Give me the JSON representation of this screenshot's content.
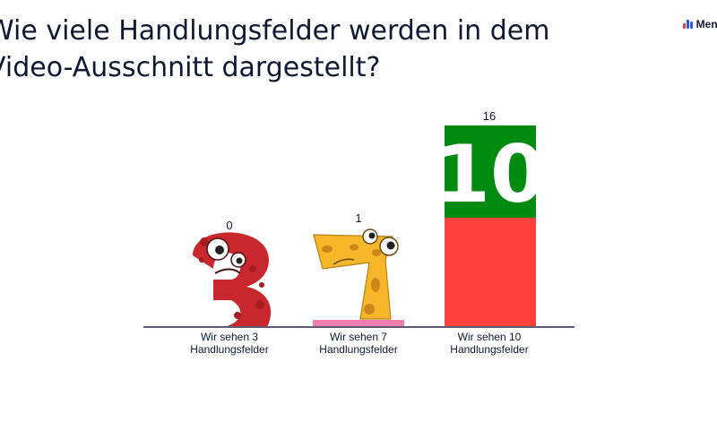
{
  "question": "Wie viele Handlungsfelder werden in dem Video-Ausschnitt dargestellt?",
  "brand": {
    "name": "Menti"
  },
  "chart_data": {
    "type": "bar",
    "categories": [
      [
        "Wir sehen 3",
        "Handlungsfelder"
      ],
      [
        "Wir sehen 7",
        "Handlungsfelder"
      ],
      [
        "Wir sehen 10",
        "Handlungsfelder"
      ]
    ],
    "values": [
      0,
      1,
      16
    ],
    "ylim": [
      0,
      16
    ],
    "bar_colors": [
      "#E05B8B",
      "#F07EB0",
      "#FF403D"
    ],
    "top_block_text": "10",
    "top_block_color": "#008A10",
    "mascot_colors": {
      "three": "#C8282D",
      "seven": "#F6B72B"
    }
  }
}
